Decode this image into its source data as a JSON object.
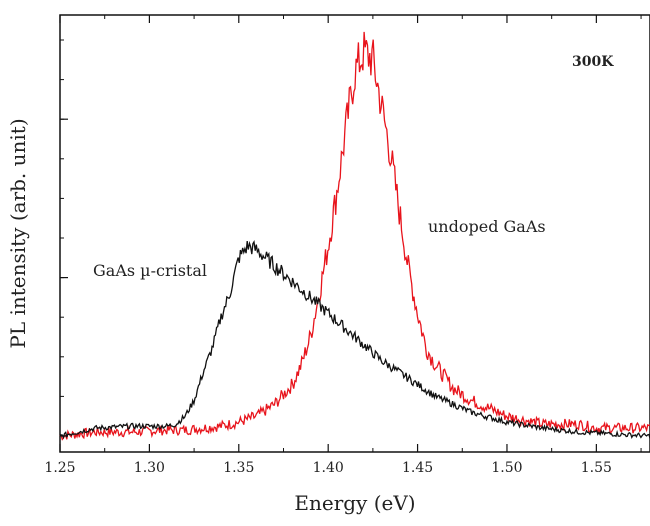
{
  "chart_data": {
    "type": "line",
    "title": "",
    "xlabel": "Energy (eV)",
    "ylabel": "PL intensity (arb. unit)",
    "xlim": [
      1.25,
      1.58
    ],
    "ylim": [
      0,
      1.0
    ],
    "x_ticks": [
      1.25,
      1.3,
      1.35,
      1.4,
      1.45,
      1.5,
      1.55
    ],
    "x_tick_labels": [
      "1.25",
      "1.30",
      "1.35",
      "1.40",
      "1.45",
      "1.50",
      "1.55"
    ],
    "y_tick_labels": [],
    "grid": false,
    "annotations": [
      {
        "text": "300K"
      },
      {
        "text": "undoped GaAs"
      },
      {
        "text": "GaAs µ-cristal"
      }
    ],
    "series": [
      {
        "color": "#e8141c",
        "label_ref": "undoped GaAs",
        "x": [
          1.25,
          1.27,
          1.29,
          1.31,
          1.32,
          1.33,
          1.34,
          1.35,
          1.36,
          1.37,
          1.38,
          1.385,
          1.39,
          1.395,
          1.4,
          1.405,
          1.41,
          1.415,
          1.42,
          1.425,
          1.43,
          1.435,
          1.44,
          1.445,
          1.45,
          1.455,
          1.46,
          1.465,
          1.47,
          1.48,
          1.49,
          1.5,
          1.51,
          1.52,
          1.53,
          1.54,
          1.55,
          1.56,
          1.57,
          1.58
        ],
        "values": [
          0.0,
          0.01,
          0.01,
          0.015,
          0.015,
          0.02,
          0.025,
          0.035,
          0.05,
          0.08,
          0.13,
          0.18,
          0.25,
          0.36,
          0.48,
          0.62,
          0.78,
          0.92,
          0.97,
          0.95,
          0.83,
          0.71,
          0.56,
          0.42,
          0.31,
          0.22,
          0.18,
          0.15,
          0.12,
          0.09,
          0.07,
          0.05,
          0.04,
          0.03,
          0.03,
          0.03,
          0.02,
          0.02,
          0.02,
          0.02
        ]
      },
      {
        "color": "#111111",
        "label_ref": "GaAs µ-cristal",
        "x": [
          1.25,
          1.27,
          1.29,
          1.3,
          1.31,
          1.315,
          1.32,
          1.325,
          1.33,
          1.335,
          1.34,
          1.345,
          1.35,
          1.355,
          1.36,
          1.365,
          1.37,
          1.375,
          1.38,
          1.39,
          1.4,
          1.41,
          1.42,
          1.43,
          1.44,
          1.45,
          1.46,
          1.47,
          1.48,
          1.5,
          1.52,
          1.54,
          1.56,
          1.58
        ],
        "values": [
          0.0,
          0.02,
          0.025,
          0.025,
          0.025,
          0.03,
          0.05,
          0.09,
          0.16,
          0.22,
          0.3,
          0.36,
          0.45,
          0.48,
          0.47,
          0.45,
          0.43,
          0.41,
          0.39,
          0.35,
          0.31,
          0.27,
          0.23,
          0.19,
          0.16,
          0.13,
          0.1,
          0.08,
          0.06,
          0.035,
          0.02,
          0.01,
          0.005,
          0.0
        ]
      }
    ]
  }
}
